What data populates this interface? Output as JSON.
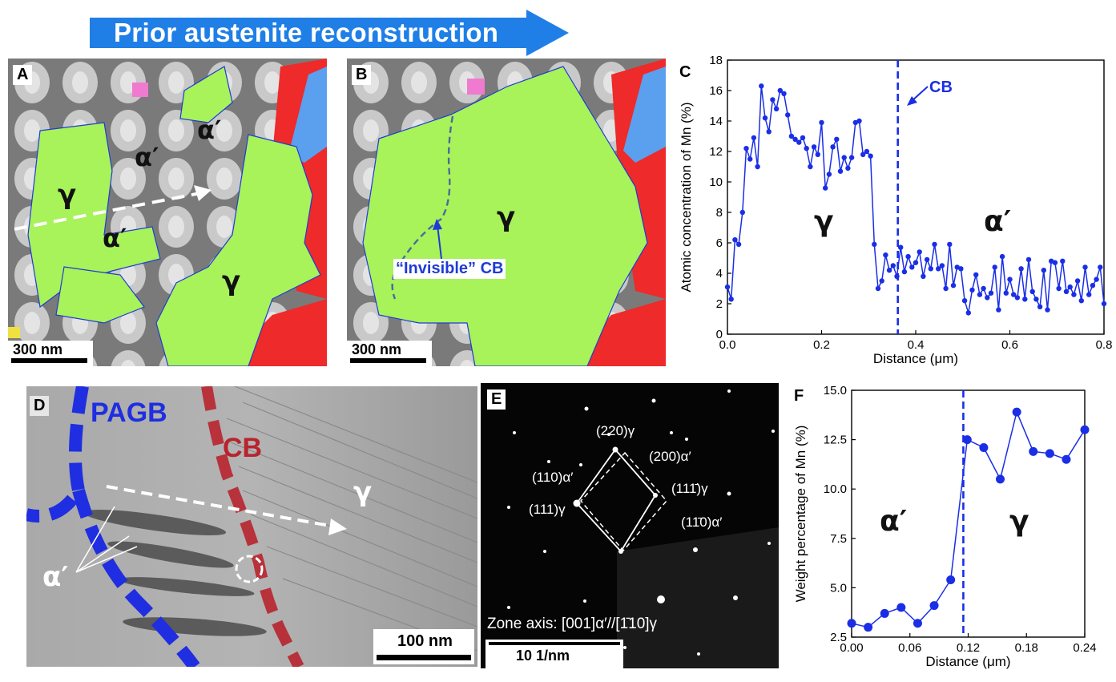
{
  "banner": {
    "title": "Prior austenite reconstruction"
  },
  "panel_a": {
    "letter": "A",
    "phase_gamma": "γ",
    "phase_alpha": "α′",
    "scale": "300 nm"
  },
  "panel_b": {
    "letter": "B",
    "phase_gamma": "γ",
    "invisible_cb": "“Invisible” CB",
    "scale": "300 nm"
  },
  "panel_c": {
    "letter": "C",
    "cb_label": "CB",
    "phase_gamma": "γ",
    "phase_alpha": "α′"
  },
  "panel_d": {
    "letter": "D",
    "pagb": "PAGB",
    "cb": "CB",
    "phase_gamma": "γ",
    "phase_alpha": "α′",
    "scale": "100 nm"
  },
  "panel_e": {
    "letter": "E",
    "zone_axis": "Zone axis: [001]α′//[1̄10]γ",
    "scale": "10 1/nm",
    "spots": [
      "(220)γ",
      "(200)α′",
      "(110)α′",
      "(111)γ",
      "(111̄)γ",
      "(11̄0)α′"
    ]
  },
  "panel_f": {
    "letter": "F",
    "phase_alpha": "α′",
    "phase_gamma": "γ"
  },
  "colors": {
    "gamma_green": "#a8f25a",
    "boundary_blue": "#1f3bd6",
    "cb_red": "#c8333a",
    "plot_blue": "#1a2ee6",
    "banner_blue": "#1f7fe6"
  },
  "chart_data": [
    {
      "type": "line",
      "panel": "C",
      "xlabel": "Distance (μm)",
      "ylabel": "Atomic concentration of Mn (%)",
      "xlim": [
        0,
        0.8
      ],
      "ylim": [
        0,
        18
      ],
      "xticks": [
        "0.0",
        "0.2",
        "0.4",
        "0.6",
        "0.8"
      ],
      "yticks": [
        "0",
        "2",
        "4",
        "6",
        "8",
        "10",
        "12",
        "14",
        "16",
        "18"
      ],
      "vline": 0.362,
      "x": [
        0.0,
        0.008,
        0.016,
        0.024,
        0.032,
        0.04,
        0.048,
        0.056,
        0.064,
        0.072,
        0.08,
        0.088,
        0.096,
        0.104,
        0.112,
        0.12,
        0.128,
        0.136,
        0.144,
        0.152,
        0.16,
        0.168,
        0.176,
        0.184,
        0.192,
        0.2,
        0.208,
        0.216,
        0.224,
        0.232,
        0.24,
        0.248,
        0.256,
        0.264,
        0.272,
        0.28,
        0.288,
        0.296,
        0.304,
        0.312,
        0.32,
        0.328,
        0.336,
        0.344,
        0.352,
        0.36,
        0.368,
        0.376,
        0.384,
        0.392,
        0.4,
        0.408,
        0.416,
        0.424,
        0.432,
        0.44,
        0.448,
        0.456,
        0.464,
        0.472,
        0.48,
        0.488,
        0.496,
        0.504,
        0.512,
        0.52,
        0.528,
        0.536,
        0.544,
        0.552,
        0.56,
        0.568,
        0.576,
        0.584,
        0.592,
        0.6,
        0.608,
        0.616,
        0.624,
        0.632,
        0.64,
        0.648,
        0.656,
        0.664,
        0.672,
        0.68,
        0.688,
        0.696,
        0.704,
        0.712,
        0.72,
        0.728,
        0.736,
        0.744,
        0.752,
        0.76,
        0.768,
        0.776,
        0.784,
        0.792,
        0.8
      ],
      "y": [
        3.1,
        2.3,
        6.2,
        5.9,
        8.0,
        12.2,
        11.5,
        12.9,
        11.0,
        16.3,
        14.2,
        13.3,
        15.4,
        14.8,
        16.0,
        15.8,
        14.4,
        13.0,
        12.8,
        12.6,
        12.9,
        12.2,
        11.0,
        12.3,
        11.8,
        13.9,
        9.6,
        10.5,
        12.3,
        12.8,
        10.7,
        11.6,
        10.9,
        11.6,
        13.9,
        14.0,
        11.8,
        12.0,
        11.7,
        5.9,
        3.0,
        3.5,
        5.2,
        4.2,
        4.5,
        3.8,
        5.7,
        4.1,
        5.1,
        4.4,
        4.7,
        5.4,
        3.8,
        4.9,
        4.3,
        5.9,
        4.3,
        4.5,
        3.0,
        5.9,
        3.2,
        4.4,
        4.3,
        2.2,
        1.4,
        2.9,
        3.9,
        2.6,
        3.0,
        2.4,
        2.7,
        4.4,
        1.6,
        5.1,
        2.7,
        3.6,
        2.6,
        2.4,
        4.3,
        2.3,
        4.9,
        2.8,
        2.3,
        1.8,
        4.2,
        1.6,
        4.8,
        4.7,
        3.0,
        4.8,
        2.8,
        3.1,
        2.6,
        3.5,
        2.2,
        4.4,
        2.6,
        3.2,
        3.6,
        4.4,
        2.0
      ]
    },
    {
      "type": "line",
      "panel": "F",
      "xlabel": "Distance (μm)",
      "ylabel": "Weight percentage of Mn (%)",
      "xlim": [
        0,
        0.24
      ],
      "ylim": [
        2.5,
        15.0
      ],
      "xticks": [
        "0.00",
        "0.06",
        "0.12",
        "0.18",
        "0.24"
      ],
      "yticks": [
        "2.5",
        "5.0",
        "7.5",
        "10.0",
        "12.5",
        "15.0"
      ],
      "vline": 0.115,
      "x": [
        0.0,
        0.017,
        0.034,
        0.051,
        0.068,
        0.085,
        0.102,
        0.119,
        0.136,
        0.153,
        0.17,
        0.187,
        0.204,
        0.221,
        0.24
      ],
      "y": [
        3.2,
        3.0,
        3.7,
        4.0,
        3.2,
        4.1,
        5.4,
        12.5,
        12.1,
        10.5,
        13.9,
        11.9,
        11.8,
        11.5,
        13.0
      ]
    }
  ]
}
